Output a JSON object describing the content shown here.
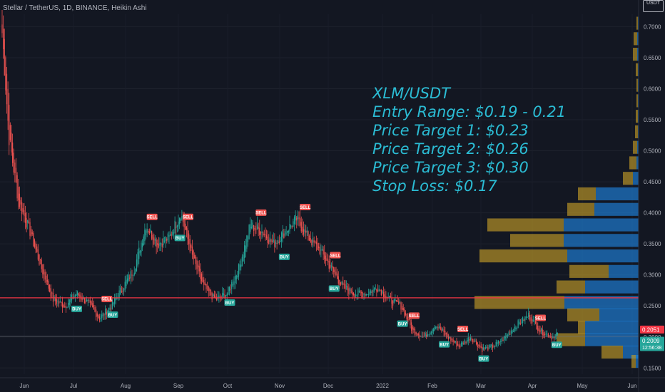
{
  "header": {
    "symbol_title": "Stellar / TetherUS, 1D, BINANCE, Heikin Ashi"
  },
  "currency_badge": "USDT",
  "annotation": {
    "lines": [
      "XLM/USDT",
      "Entry Range: $0.19 - 0.21",
      "Price Target 1: $0.23",
      "Price Target 2: $0.26",
      "Price Target 3: $0.30",
      "Stop Loss: $0.17"
    ]
  },
  "colors": {
    "background": "#131722",
    "up": "#26a69a",
    "down": "#ef5350",
    "annotation": "#2bbcd4",
    "level_line": "#f23645",
    "vp_up": "#c9a227",
    "vp_down": "#1e88e5"
  },
  "chart_data": {
    "type": "candlestick",
    "ylim": [
      0.14,
      0.72
    ],
    "y_ticks": [
      "0.7000",
      "0.6500",
      "0.6000",
      "0.5500",
      "0.5000",
      "0.4500",
      "0.4000",
      "0.3500",
      "0.3000",
      "0.2500",
      "0.2000",
      "0.1500"
    ],
    "x_ticks": [
      "Jun",
      "Jul",
      "Aug",
      "Sep",
      "Oct",
      "Nov",
      "Dec",
      "2022",
      "Feb",
      "Mar",
      "Apr",
      "May",
      "Jun"
    ],
    "price_labels": [
      {
        "label": "0.2051",
        "value": 0.2051,
        "color": "#f23645"
      },
      {
        "label": "0.2009",
        "value": 0.2009,
        "color": "#26a69a",
        "sub": "12:56:38"
      }
    ],
    "level_line": 0.263,
    "current_line": 0.2009,
    "key_points": [
      {
        "x": 0,
        "y": 0.69
      },
      {
        "x": 6,
        "y": 0.52
      },
      {
        "x": 14,
        "y": 0.42
      },
      {
        "x": 24,
        "y": 0.37
      },
      {
        "x": 34,
        "y": 0.31
      },
      {
        "x": 44,
        "y": 0.26
      },
      {
        "x": 54,
        "y": 0.25
      },
      {
        "x": 64,
        "y": 0.27
      },
      {
        "x": 74,
        "y": 0.255
      },
      {
        "x": 84,
        "y": 0.23
      },
      {
        "x": 94,
        "y": 0.25
      },
      {
        "x": 104,
        "y": 0.28
      },
      {
        "x": 114,
        "y": 0.31
      },
      {
        "x": 124,
        "y": 0.38
      },
      {
        "x": 134,
        "y": 0.35
      },
      {
        "x": 144,
        "y": 0.36
      },
      {
        "x": 154,
        "y": 0.4
      },
      {
        "x": 164,
        "y": 0.33
      },
      {
        "x": 174,
        "y": 0.28
      },
      {
        "x": 184,
        "y": 0.26
      },
      {
        "x": 194,
        "y": 0.27
      },
      {
        "x": 204,
        "y": 0.31
      },
      {
        "x": 214,
        "y": 0.38
      },
      {
        "x": 224,
        "y": 0.37
      },
      {
        "x": 234,
        "y": 0.35
      },
      {
        "x": 244,
        "y": 0.37
      },
      {
        "x": 254,
        "y": 0.39
      },
      {
        "x": 264,
        "y": 0.36
      },
      {
        "x": 274,
        "y": 0.34
      },
      {
        "x": 284,
        "y": 0.31
      },
      {
        "x": 294,
        "y": 0.28
      },
      {
        "x": 304,
        "y": 0.27
      },
      {
        "x": 314,
        "y": 0.27
      },
      {
        "x": 324,
        "y": 0.28
      },
      {
        "x": 334,
        "y": 0.26
      },
      {
        "x": 344,
        "y": 0.25
      },
      {
        "x": 354,
        "y": 0.21
      },
      {
        "x": 364,
        "y": 0.2
      },
      {
        "x": 374,
        "y": 0.22
      },
      {
        "x": 384,
        "y": 0.2
      },
      {
        "x": 394,
        "y": 0.185
      },
      {
        "x": 404,
        "y": 0.2
      },
      {
        "x": 414,
        "y": 0.18
      },
      {
        "x": 424,
        "y": 0.185
      },
      {
        "x": 434,
        "y": 0.2
      },
      {
        "x": 444,
        "y": 0.22
      },
      {
        "x": 454,
        "y": 0.235
      },
      {
        "x": 464,
        "y": 0.21
      },
      {
        "x": 474,
        "y": 0.2
      },
      {
        "x": 478,
        "y": 0.205
      }
    ],
    "signals": [
      {
        "type": "SELL",
        "bar": 0
      },
      {
        "type": "BUY",
        "bar": 64
      },
      {
        "type": "SELL",
        "bar": 90
      },
      {
        "type": "BUY",
        "bar": 95
      },
      {
        "type": "SELL",
        "bar": 129
      },
      {
        "type": "BUY",
        "bar": 153
      },
      {
        "type": "SELL",
        "bar": 160
      },
      {
        "type": "BUY",
        "bar": 196
      },
      {
        "type": "SELL",
        "bar": 223
      },
      {
        "type": "BUY",
        "bar": 243
      },
      {
        "type": "SELL",
        "bar": 261
      },
      {
        "type": "SELL",
        "bar": 287
      },
      {
        "type": "BUY",
        "bar": 286
      },
      {
        "type": "BUY",
        "bar": 345
      },
      {
        "type": "SELL",
        "bar": 355
      },
      {
        "type": "BUY",
        "bar": 381
      },
      {
        "type": "SELL",
        "bar": 397
      },
      {
        "type": "BUY",
        "bar": 415
      },
      {
        "type": "SELL",
        "bar": 464
      },
      {
        "type": "BUY",
        "bar": 478
      }
    ],
    "volume_profile": [
      {
        "price": 0.705,
        "up": 2,
        "down": 1
      },
      {
        "price": 0.68,
        "up": 5,
        "down": 2
      },
      {
        "price": 0.655,
        "up": 6,
        "down": 2
      },
      {
        "price": 0.63,
        "up": 3,
        "down": 1
      },
      {
        "price": 0.605,
        "up": 2,
        "down": 1
      },
      {
        "price": 0.58,
        "up": 2,
        "down": 1
      },
      {
        "price": 0.555,
        "up": 3,
        "down": 1
      },
      {
        "price": 0.53,
        "up": 4,
        "down": 1
      },
      {
        "price": 0.505,
        "up": 6,
        "down": 2
      },
      {
        "price": 0.48,
        "up": 10,
        "down": 3
      },
      {
        "price": 0.455,
        "up": 14,
        "down": 8
      },
      {
        "price": 0.43,
        "up": 25,
        "down": 60
      },
      {
        "price": 0.405,
        "up": 38,
        "down": 62
      },
      {
        "price": 0.38,
        "up": 107,
        "down": 105
      },
      {
        "price": 0.355,
        "up": 75,
        "down": 105
      },
      {
        "price": 0.33,
        "up": 123,
        "down": 100
      },
      {
        "price": 0.305,
        "up": 55,
        "down": 42
      },
      {
        "price": 0.28,
        "up": 40,
        "down": 75
      },
      {
        "price": 0.255,
        "up": 126,
        "down": 104
      },
      {
        "price": 0.235,
        "up": 45,
        "down": 55
      },
      {
        "price": 0.215,
        "up": 10,
        "down": 75
      },
      {
        "price": 0.195,
        "up": 40,
        "down": 75
      },
      {
        "price": 0.175,
        "up": 30,
        "down": 22
      },
      {
        "price": 0.16,
        "up": 6,
        "down": 4
      }
    ]
  }
}
